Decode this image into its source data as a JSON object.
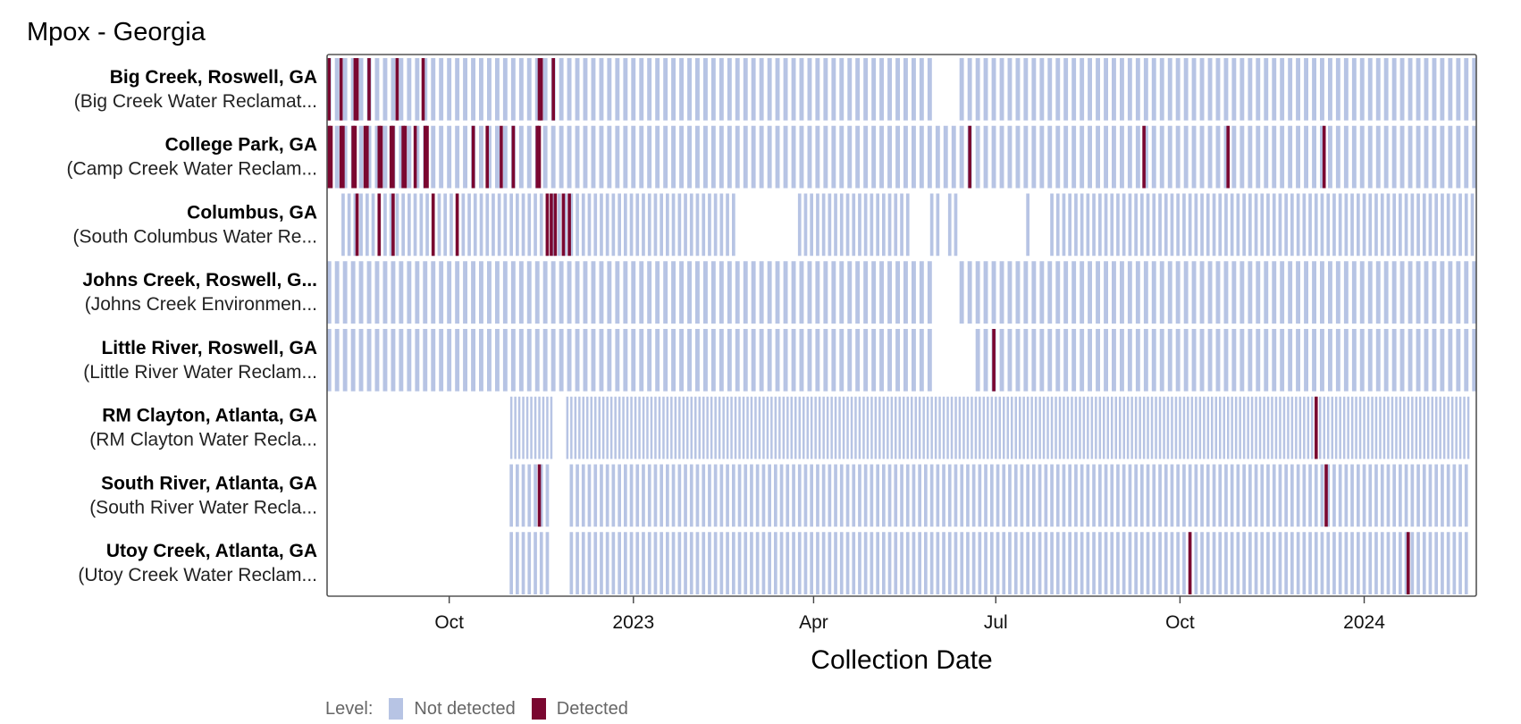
{
  "chart_data": {
    "type": "heatmap",
    "title": "Mpox - Georgia",
    "xlabel": "Collection Date",
    "x_ticks": [
      "Oct",
      "2023",
      "Apr",
      "Jul",
      "Oct",
      "2024"
    ],
    "x_tick_dates": [
      "2022-10-01",
      "2023-01-01",
      "2023-04-01",
      "2023-07-01",
      "2023-10-01",
      "2024-01-01"
    ],
    "x_range": [
      "2022-08-01",
      "2024-02-26"
    ],
    "legend": {
      "title": "Level:",
      "items": [
        "Not detected",
        "Detected"
      ],
      "position": "bottom"
    },
    "colors": {
      "Not detected": "#b7c4e4",
      "Detected": "#7a0730",
      "frame": "#555555"
    },
    "sites": [
      {
        "name": "Big Creek, Roswell, GA",
        "plant": "(Big Creek Water Reclamat...",
        "first": "2022-08-02",
        "last": "2024-02-25",
        "interval_days": 4,
        "gaps": [
          [
            "2023-06-01",
            "2023-06-13"
          ]
        ],
        "detected": [
          "2022-08-02",
          "2022-08-08",
          "2022-08-15",
          "2022-08-16",
          "2022-08-22",
          "2022-09-05",
          "2022-09-18",
          "2022-11-15",
          "2022-11-16",
          "2022-11-22"
        ]
      },
      {
        "name": "College Park, GA",
        "plant": "(Camp Creek Water Reclam...",
        "first": "2022-08-02",
        "last": "2024-02-25",
        "interval_days": 4,
        "gaps": [],
        "detected": [
          "2022-08-02",
          "2022-08-03",
          "2022-08-08",
          "2022-08-09",
          "2022-08-14",
          "2022-08-15",
          "2022-08-20",
          "2022-08-21",
          "2022-08-27",
          "2022-08-28",
          "2022-09-02",
          "2022-09-03",
          "2022-09-08",
          "2022-09-09",
          "2022-09-14",
          "2022-09-19",
          "2022-09-20",
          "2022-10-13",
          "2022-10-20",
          "2022-10-27",
          "2022-11-02",
          "2022-11-14",
          "2022-11-15",
          "2023-06-18",
          "2023-09-13",
          "2023-10-25",
          "2023-12-12"
        ]
      },
      {
        "name": "Columbus, GA",
        "plant": "(South Columbus Water Re...",
        "first": "2022-08-09",
        "last": "2024-02-25",
        "interval_days": 3,
        "gaps": [
          [
            "2023-02-22",
            "2023-03-24"
          ],
          [
            "2023-05-20",
            "2023-05-28"
          ],
          [
            "2023-06-04",
            "2023-06-07"
          ],
          [
            "2023-06-13",
            "2023-07-15"
          ],
          [
            "2023-07-20",
            "2023-07-28"
          ]
        ],
        "detected": [
          "2022-08-16",
          "2022-08-27",
          "2022-09-03",
          "2022-09-23",
          "2022-10-05",
          "2022-11-19",
          "2022-11-21",
          "2022-11-23",
          "2022-11-27",
          "2022-11-30"
        ]
      },
      {
        "name": "Johns Creek, Roswell, G...",
        "plant": "(Johns Creek Environmen...",
        "first": "2022-08-02",
        "last": "2024-02-25",
        "interval_days": 4,
        "gaps": [
          [
            "2023-06-01",
            "2023-06-13"
          ]
        ],
        "detected": []
      },
      {
        "name": "Little River, Roswell, GA",
        "plant": "(Little River Water Reclam...",
        "first": "2022-08-02",
        "last": "2024-02-25",
        "interval_days": 4,
        "gaps": [
          [
            "2023-06-01",
            "2023-06-20"
          ]
        ],
        "detected": [
          "2023-06-30"
        ]
      },
      {
        "name": "RM Clayton, Atlanta, GA",
        "plant": "(RM Clayton Water Recla...",
        "first": "2022-11-01",
        "last": "2024-02-22",
        "interval_days": 2,
        "gaps": [
          [
            "2022-11-22",
            "2022-11-28"
          ]
        ],
        "detected": [
          "2023-12-08"
        ]
      },
      {
        "name": "South River, Atlanta, GA",
        "plant": "(South River Water Recla...",
        "first": "2022-11-01",
        "last": "2024-02-22",
        "interval_days": 3,
        "gaps": [
          [
            "2022-11-22",
            "2022-11-28"
          ]
        ],
        "detected": [
          "2022-11-15",
          "2023-12-13"
        ]
      },
      {
        "name": "Utoy Creek, Atlanta, GA",
        "plant": "(Utoy Creek Water Reclam...",
        "first": "2022-11-01",
        "last": "2024-02-22",
        "interval_days": 3,
        "gaps": [
          [
            "2022-11-22",
            "2022-11-28"
          ]
        ],
        "detected": [
          "2023-10-06",
          "2024-01-23"
        ]
      }
    ]
  }
}
